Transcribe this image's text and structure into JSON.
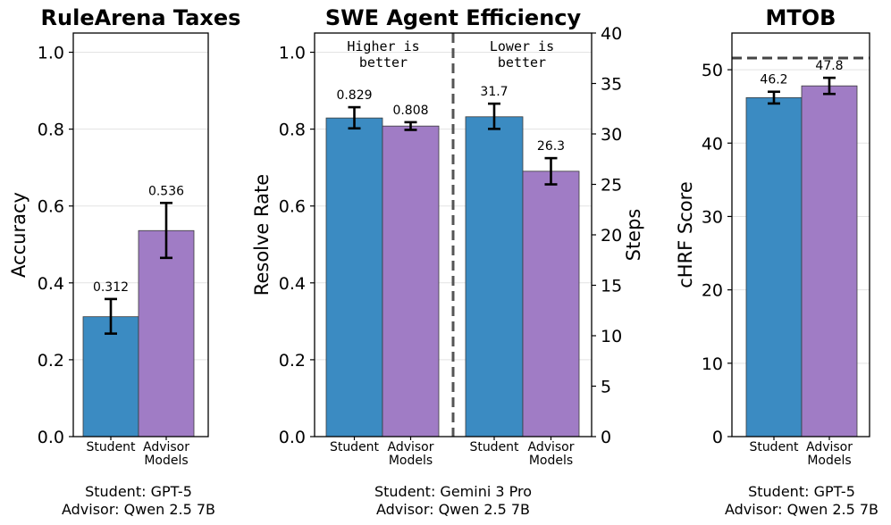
{
  "colors": {
    "student": "#3b8bc2",
    "advisor": "#a07cc5"
  },
  "chart_data": [
    {
      "type": "bar",
      "title": "RuleArena Taxes",
      "ylabel": "Accuracy",
      "ylim": [
        0,
        1.05
      ],
      "yticks": [
        "0.0",
        "0.2",
        "0.4",
        "0.6",
        "0.8",
        "1.0"
      ],
      "categories": [
        "Student",
        "Advisor\nModels"
      ],
      "values": [
        0.312,
        0.536
      ],
      "value_labels": [
        "0.312",
        "0.536"
      ],
      "errors": [
        [
          0.268,
          0.358
        ],
        [
          0.465,
          0.608
        ]
      ],
      "grid": true,
      "caption": [
        "Student: GPT-5",
        "Advisor: Qwen 2.5 7B"
      ]
    },
    {
      "type": "bar",
      "title": "SWE Agent Efficiency",
      "ylabel": "Resolve Rate",
      "ylim": [
        0,
        1.05
      ],
      "yticks": [
        "0.0",
        "0.2",
        "0.4",
        "0.6",
        "0.8",
        "1.0"
      ],
      "y2label": "Steps",
      "y2lim": [
        0,
        40
      ],
      "y2ticks": [
        "0",
        "5",
        "10",
        "15",
        "20",
        "25",
        "30",
        "35",
        "40"
      ],
      "annotations": [
        "Higher is\nbetter",
        "Lower is\nbetter"
      ],
      "groups": [
        {
          "axis": "left",
          "categories": [
            "Student",
            "Advisor\nModels"
          ],
          "values": [
            0.829,
            0.808
          ],
          "value_labels": [
            "0.829",
            "0.808"
          ],
          "errors": [
            [
              0.802,
              0.857
            ],
            [
              0.798,
              0.818
            ]
          ]
        },
        {
          "axis": "right",
          "categories": [
            "Student",
            "Advisor\nModels"
          ],
          "values": [
            31.7,
            26.3
          ],
          "value_labels": [
            "31.7",
            "26.3"
          ],
          "errors": [
            [
              30.5,
              33.0
            ],
            [
              25.0,
              27.6
            ]
          ]
        }
      ],
      "grid": true,
      "caption": [
        "Student: Gemini 3 Pro",
        "Advisor: Qwen 2.5 7B"
      ]
    },
    {
      "type": "bar",
      "title": "MTOB",
      "ylabel": "cHRF Score",
      "ylim": [
        0,
        55
      ],
      "yticks": [
        "0",
        "10",
        "20",
        "30",
        "40",
        "50"
      ],
      "categories": [
        "Student",
        "Advisor\nModels"
      ],
      "values": [
        46.2,
        47.8
      ],
      "value_labels": [
        "46.2",
        "47.8"
      ],
      "errors": [
        [
          45.4,
          47.0
        ],
        [
          46.7,
          48.9
        ]
      ],
      "reference_line": 51.6,
      "grid": true,
      "caption": [
        "Student: GPT-5",
        "Advisor: Qwen 2.5 7B"
      ]
    }
  ]
}
